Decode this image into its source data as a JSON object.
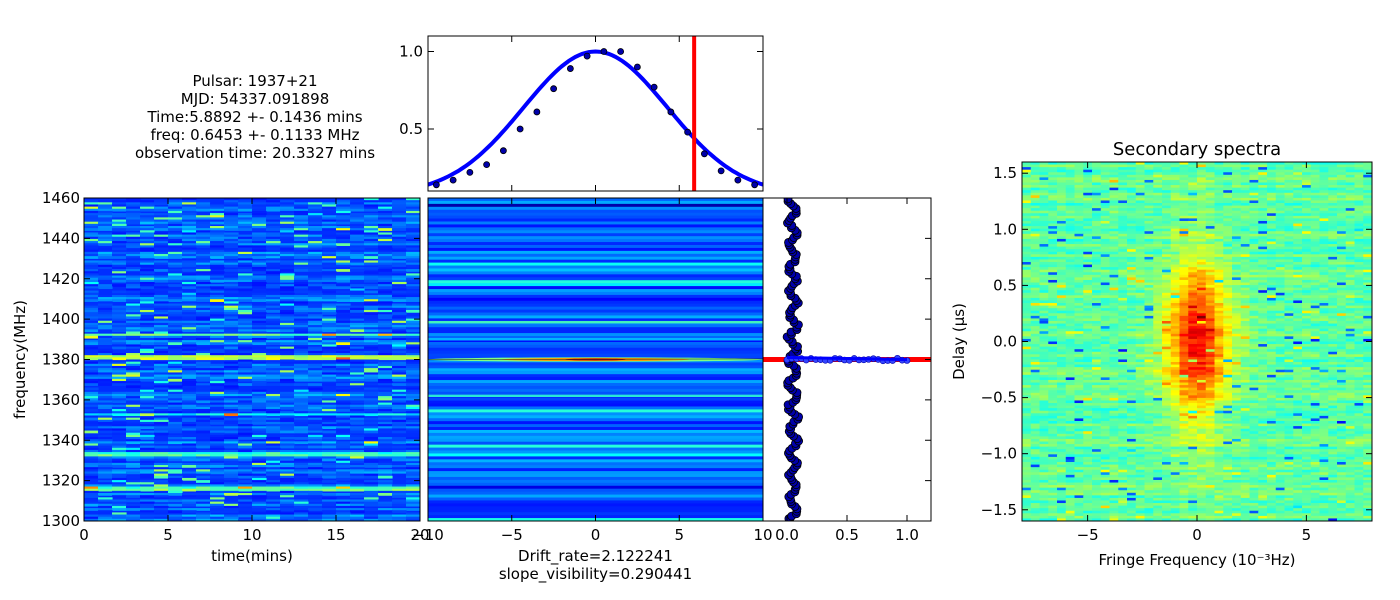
{
  "info": {
    "lines": [
      "Pulsar: 1937+21",
      "MJD: 54337.091898",
      "Time:5.8892 +- 0.1436 mins",
      "freq: 0.6453 +- 0.1133 MHz",
      "observation time: 20.3327 mins"
    ]
  },
  "colors": {
    "fit_line": "#0000ff",
    "marker_line": "#ff0000",
    "points": "#0000aa"
  },
  "chart_data": [
    {
      "type": "heatmap",
      "title": "",
      "xlabel": "time(mins)",
      "ylabel": "frequency(MHz)",
      "xlim": [
        0,
        20
      ],
      "ylim": [
        1300,
        1460
      ],
      "x_ticks": [
        "0",
        "5",
        "10",
        "15",
        "20"
      ],
      "y_ticks": [
        "1300",
        "1320",
        "1340",
        "1360",
        "1380",
        "1400",
        "1420",
        "1440",
        "1460"
      ],
      "colormap": "jet",
      "bright_bands_MHz": [
        1381,
        1392,
        1333,
        1316,
        1353
      ]
    },
    {
      "type": "heatmap",
      "title": "",
      "xlabel": "Drift_rate=2.122241",
      "xlabel2": "slope_visibility=0.290441",
      "xlim": [
        -10,
        10
      ],
      "x_ticks": [
        "−10",
        "−5",
        "0",
        "5",
        "10"
      ],
      "colormap": "jet",
      "peak_frequency_MHz": 1380
    },
    {
      "type": "scatter",
      "title": "",
      "xlim": [
        -10,
        10
      ],
      "ylim": [
        0.1,
        1.1
      ],
      "y_ticks": [
        "0.5",
        "1.0"
      ],
      "points_x": [
        -9.5,
        -8.5,
        -7.5,
        -6.5,
        -5.5,
        -4.5,
        -3.5,
        -2.5,
        -1.5,
        -0.5,
        0.5,
        1.5,
        2.5,
        3.5,
        4.5,
        5.5,
        6.5,
        7.5,
        8.5,
        9.5
      ],
      "points_y": [
        0.14,
        0.17,
        0.22,
        0.27,
        0.36,
        0.5,
        0.61,
        0.76,
        0.89,
        0.97,
        1.0,
        1.0,
        0.9,
        0.77,
        0.61,
        0.48,
        0.34,
        0.23,
        0.17,
        0.14
      ],
      "fit_curve": "gaussian, peak 1.0 at x=0",
      "vertical_line_x": 5.8892
    },
    {
      "type": "scatter",
      "title": "",
      "xlim": [
        -0.2,
        1.2
      ],
      "ylim": [
        1300,
        1460
      ],
      "x_ticks": [
        "0.0",
        "0.5",
        "1.0"
      ],
      "scatter_x_center": 0.05,
      "horizontal_line_y": 1380,
      "fit_line_x": [
        0.0,
        1.0
      ]
    },
    {
      "type": "heatmap",
      "title": "Secondary spectra",
      "xlabel": "Fringe Frequency (10⁻³Hz)",
      "ylabel": "Delay (μs)",
      "xlim": [
        -8,
        8
      ],
      "ylim": [
        -1.6,
        1.6
      ],
      "x_ticks": [
        "−5",
        "0",
        "5"
      ],
      "y_ticks": [
        "−1.5",
        "−1.0",
        "−0.5",
        "0.0",
        "0.5",
        "1.0",
        "1.5"
      ],
      "colormap": "jet"
    }
  ]
}
